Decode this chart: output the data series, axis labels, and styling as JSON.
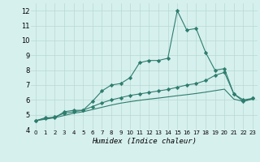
{
  "xlabel": "Humidex (Indice chaleur)",
  "x": [
    0,
    1,
    2,
    3,
    4,
    5,
    6,
    7,
    8,
    9,
    10,
    11,
    12,
    13,
    14,
    15,
    16,
    17,
    18,
    19,
    20,
    21,
    22,
    23
  ],
  "line1": [
    4.6,
    4.8,
    4.8,
    5.2,
    5.3,
    5.3,
    5.9,
    6.6,
    7.0,
    7.1,
    7.5,
    8.5,
    8.65,
    8.65,
    8.8,
    12.0,
    10.7,
    10.8,
    9.2,
    8.0,
    8.1,
    6.4,
    5.9,
    6.1
  ],
  "line2": [
    4.6,
    4.75,
    4.85,
    5.1,
    5.2,
    5.3,
    5.55,
    5.8,
    6.0,
    6.15,
    6.3,
    6.4,
    6.5,
    6.6,
    6.7,
    6.85,
    7.0,
    7.1,
    7.3,
    7.65,
    7.85,
    6.4,
    6.0,
    6.1
  ],
  "line3": [
    4.6,
    4.7,
    4.8,
    4.95,
    5.1,
    5.2,
    5.35,
    5.5,
    5.65,
    5.78,
    5.88,
    5.97,
    6.05,
    6.12,
    6.2,
    6.28,
    6.35,
    6.43,
    6.52,
    6.62,
    6.72,
    6.05,
    5.9,
    6.05
  ],
  "line_color": "#2e7d6e",
  "bg_color": "#d6f0ee",
  "grid_color": "#b8d8d4",
  "ylim": [
    4,
    12.5
  ],
  "yticks": [
    4,
    5,
    6,
    7,
    8,
    9,
    10,
    11,
    12
  ],
  "xlim": [
    -0.5,
    23.5
  ],
  "xlabel_fontsize": 6.5,
  "tick_fontsize_x": 5.0,
  "tick_fontsize_y": 6.0
}
